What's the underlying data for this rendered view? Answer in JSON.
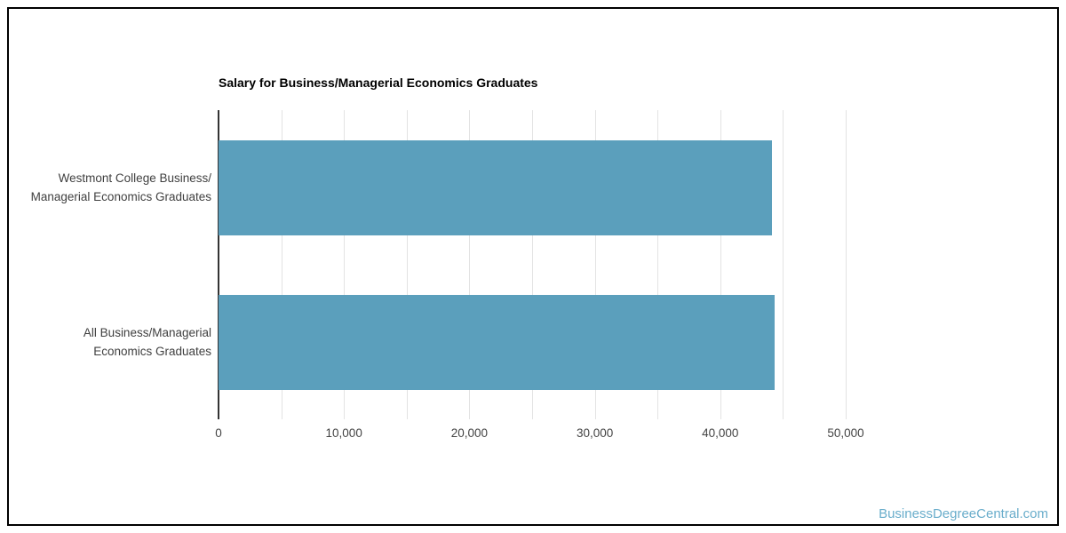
{
  "chart_data": {
    "type": "bar",
    "orientation": "horizontal",
    "title": "Salary for Business/Managerial Economics Graduates",
    "categories": [
      {
        "name": "Westmont College Business/Managerial Economics Graduates",
        "lines": [
          "Westmont College Business/",
          "Managerial Economics Graduates"
        ]
      },
      {
        "name": "All Business/Managerial Economics Graduates",
        "lines": [
          "All Business/Managerial",
          "Economics Graduates"
        ]
      }
    ],
    "values": [
      44100,
      44300
    ],
    "xlabel": "",
    "ylabel": "",
    "xlim": [
      0,
      54000
    ],
    "grid": true,
    "legend_position": "none",
    "ticks": [
      {
        "value": 0,
        "label": "0"
      },
      {
        "value": 5000,
        "label": ""
      },
      {
        "value": 10000,
        "label": "10,000"
      },
      {
        "value": 15000,
        "label": ""
      },
      {
        "value": 20000,
        "label": "20,000"
      },
      {
        "value": 25000,
        "label": ""
      },
      {
        "value": 30000,
        "label": "30,000"
      },
      {
        "value": 35000,
        "label": ""
      },
      {
        "value": 40000,
        "label": "40,000"
      },
      {
        "value": 45000,
        "label": ""
      },
      {
        "value": 50000,
        "label": "50,000"
      }
    ],
    "colors": {
      "bar": "#5B9FBC",
      "gridline": "#e3e3e3",
      "axis": "#333333",
      "title_text": "#000000",
      "category_text": "#404040",
      "tick_text": "#444444",
      "frame_border": "#000000"
    }
  },
  "watermark": {
    "text": "BusinessDegreeCentral.com",
    "color": "#69ADCB"
  }
}
